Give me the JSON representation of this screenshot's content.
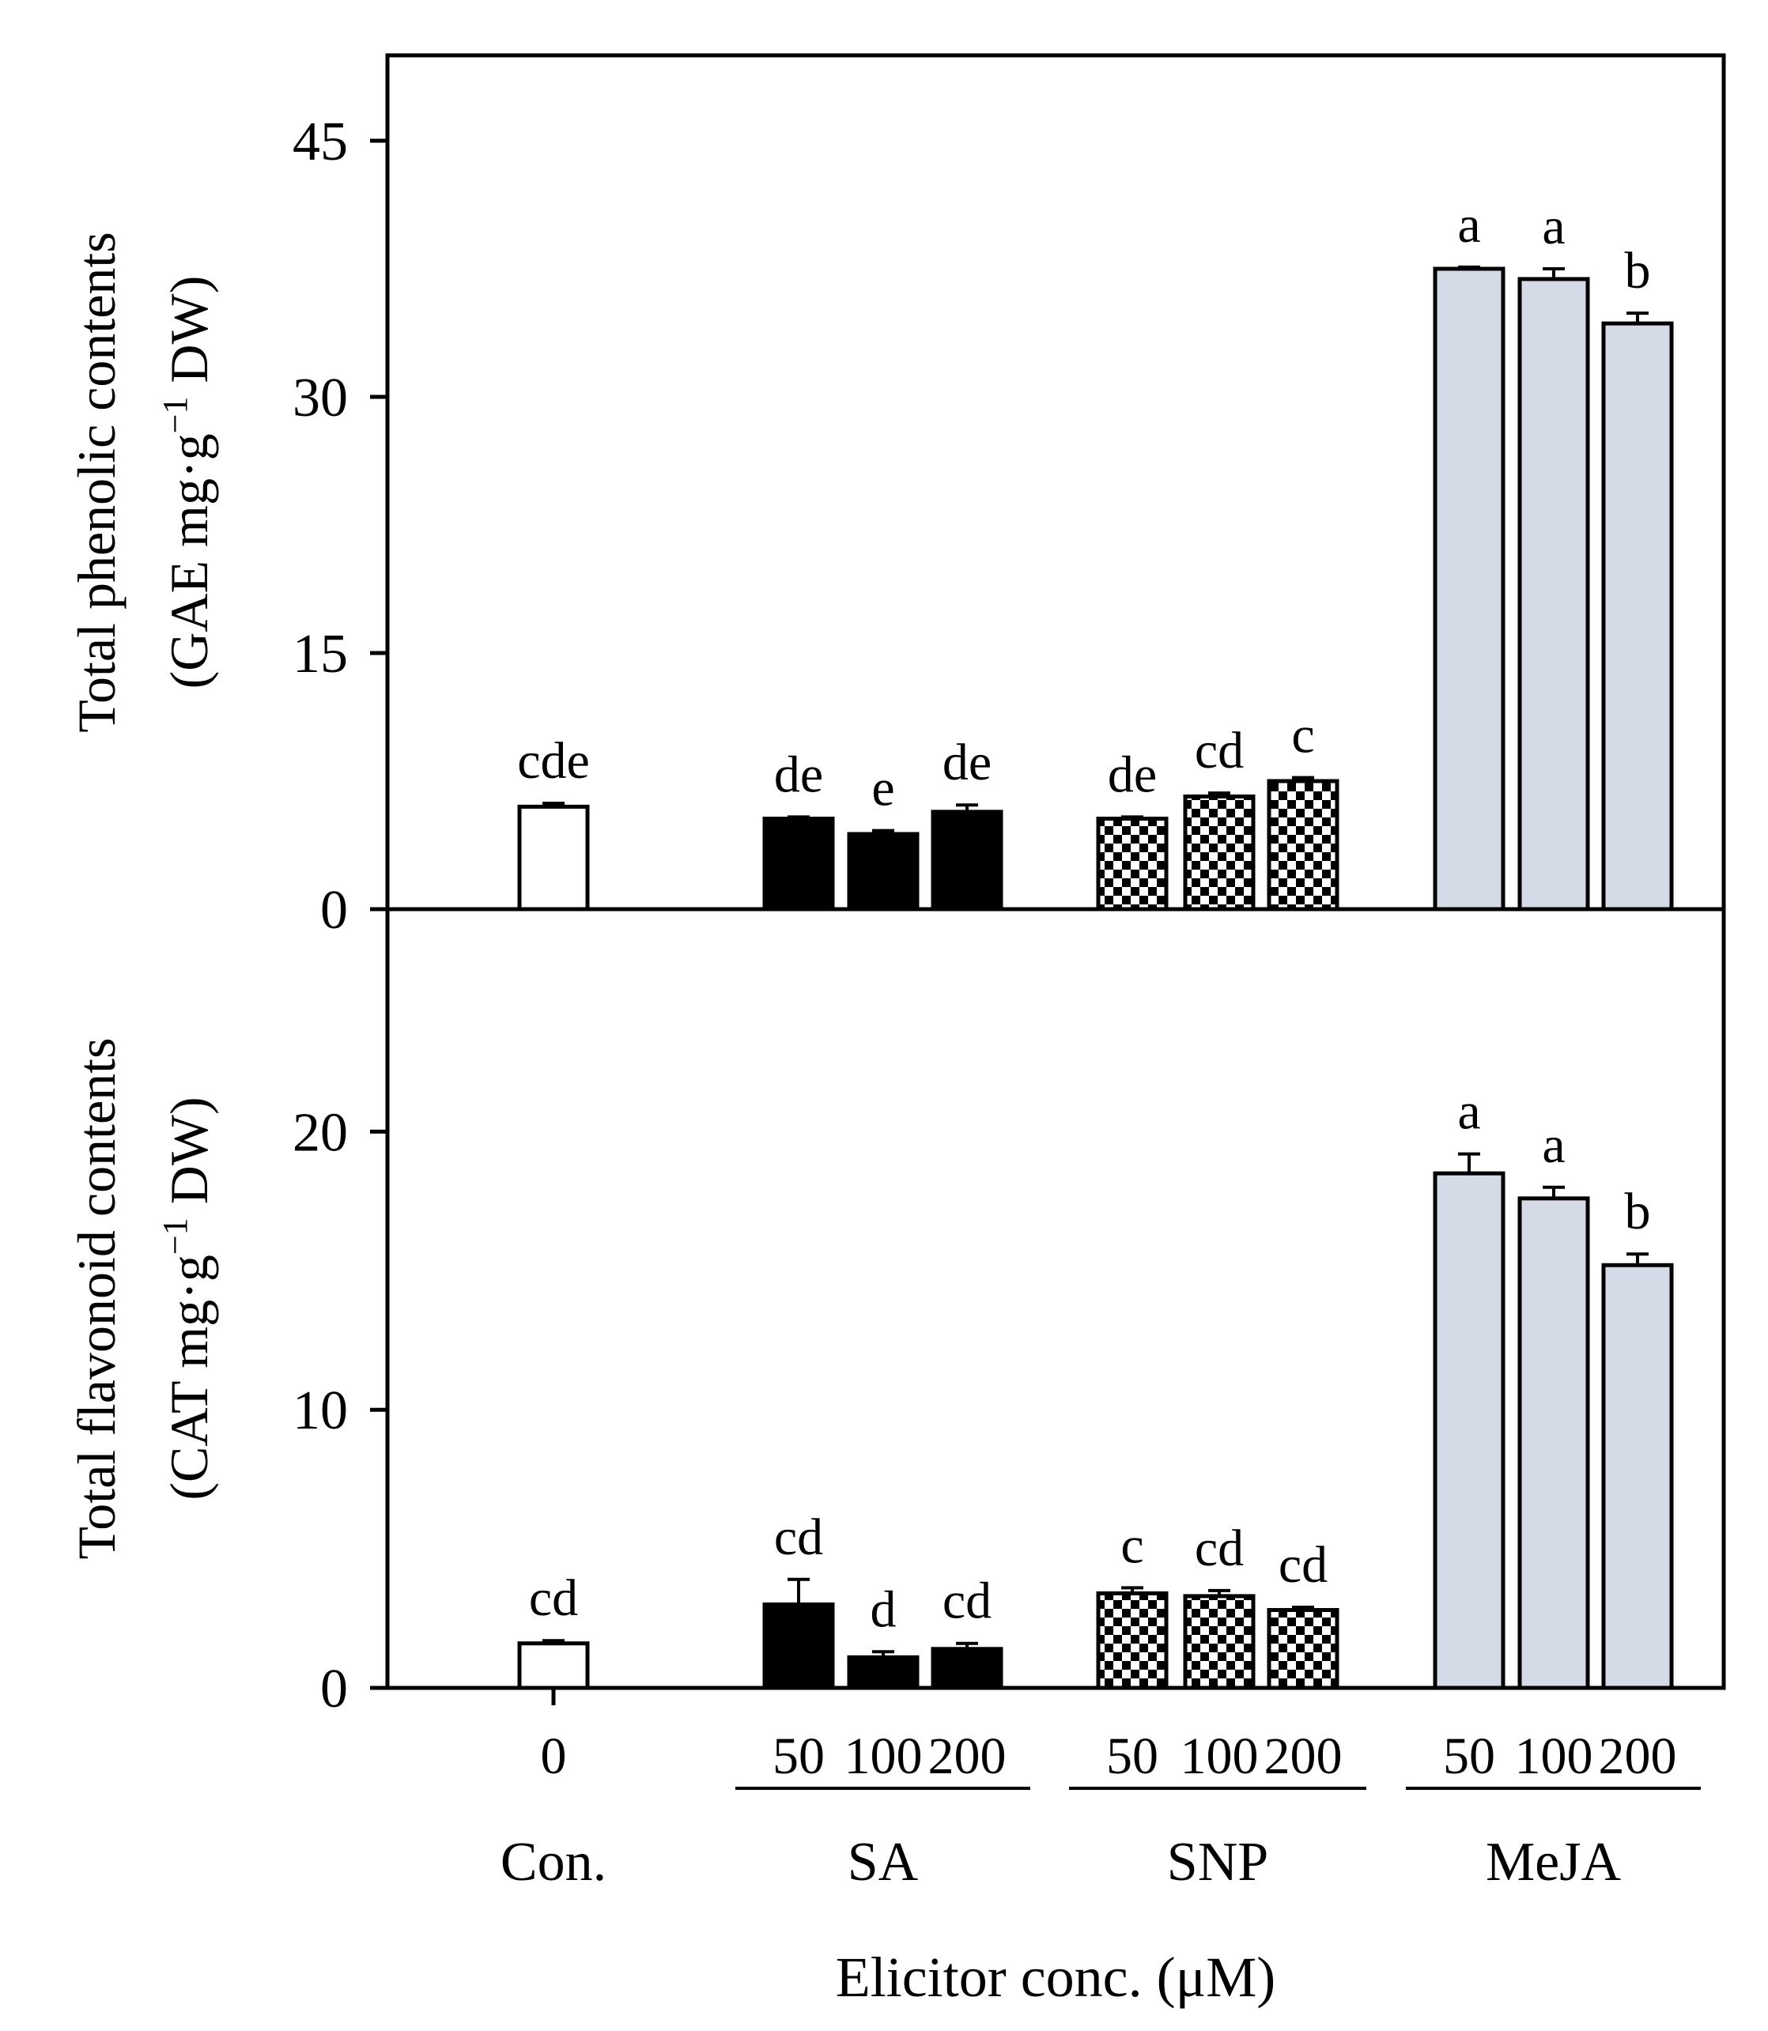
{
  "chart_data": [
    {
      "type": "bar",
      "panel": "top",
      "ylabel_line1": "Total phenolic contents",
      "ylabel_line2_pre": "(GAE mg·g",
      "ylabel_sup": "−1",
      "ylabel_line2_post": " DW)",
      "ylim": [
        0,
        50
      ],
      "yticks": [
        0,
        15,
        30,
        45
      ],
      "bars": [
        {
          "group": "Con.",
          "conc": "0",
          "value": 6.0,
          "error": 0.2,
          "letter": "cde"
        },
        {
          "group": "SA",
          "conc": "50",
          "value": 5.3,
          "error": 0.1,
          "letter": "de"
        },
        {
          "group": "SA",
          "conc": "100",
          "value": 4.4,
          "error": 0.2,
          "letter": "e"
        },
        {
          "group": "SA",
          "conc": "200",
          "value": 5.7,
          "error": 0.4,
          "letter": "de"
        },
        {
          "group": "SNP",
          "conc": "50",
          "value": 5.3,
          "error": 0.1,
          "letter": "de"
        },
        {
          "group": "SNP",
          "conc": "100",
          "value": 6.6,
          "error": 0.2,
          "letter": "cd"
        },
        {
          "group": "SNP",
          "conc": "200",
          "value": 7.5,
          "error": 0.2,
          "letter": "c"
        },
        {
          "group": "MeJA",
          "conc": "50",
          "value": 37.5,
          "error": 0.1,
          "letter": "a"
        },
        {
          "group": "MeJA",
          "conc": "100",
          "value": 36.9,
          "error": 0.6,
          "letter": "a"
        },
        {
          "group": "MeJA",
          "conc": "200",
          "value": 34.3,
          "error": 0.6,
          "letter": "b"
        }
      ]
    },
    {
      "type": "bar",
      "panel": "bottom",
      "ylabel_line1": "Total flavonoid contents",
      "ylabel_line2_pre": "(CAT mg·g",
      "ylabel_sup": "−1",
      "ylabel_line2_post": " DW)",
      "ylim": [
        0,
        28
      ],
      "yticks": [
        0,
        10,
        20
      ],
      "bars": [
        {
          "group": "Con.",
          "conc": "0",
          "value": 1.6,
          "error": 0.1,
          "letter": "cd"
        },
        {
          "group": "SA",
          "conc": "50",
          "value": 3.0,
          "error": 0.9,
          "letter": "cd"
        },
        {
          "group": "SA",
          "conc": "100",
          "value": 1.1,
          "error": 0.2,
          "letter": "d"
        },
        {
          "group": "SA",
          "conc": "200",
          "value": 1.4,
          "error": 0.2,
          "letter": "cd"
        },
        {
          "group": "SNP",
          "conc": "50",
          "value": 3.4,
          "error": 0.2,
          "letter": "c"
        },
        {
          "group": "SNP",
          "conc": "100",
          "value": 3.3,
          "error": 0.2,
          "letter": "cd"
        },
        {
          "group": "SNP",
          "conc": "200",
          "value": 2.8,
          "error": 0.1,
          "letter": "cd"
        },
        {
          "group": "MeJA",
          "conc": "50",
          "value": 18.5,
          "error": 0.7,
          "letter": "a"
        },
        {
          "group": "MeJA",
          "conc": "100",
          "value": 17.6,
          "error": 0.4,
          "letter": "a"
        },
        {
          "group": "MeJA",
          "conc": "200",
          "value": 15.2,
          "error": 0.4,
          "letter": "b"
        }
      ]
    }
  ],
  "groups": [
    {
      "name": "Con.",
      "style": "open"
    },
    {
      "name": "SA",
      "style": "solid"
    },
    {
      "name": "SNP",
      "style": "checker"
    },
    {
      "name": "MeJA",
      "style": "grey"
    }
  ],
  "xlabel": "Elicitor conc. (μM)",
  "colors": {
    "open": "#ffffff",
    "solid": "#000000",
    "grey": "#d4dbe6",
    "checker_dark": "#000000",
    "checker_light": "#ffffff"
  }
}
